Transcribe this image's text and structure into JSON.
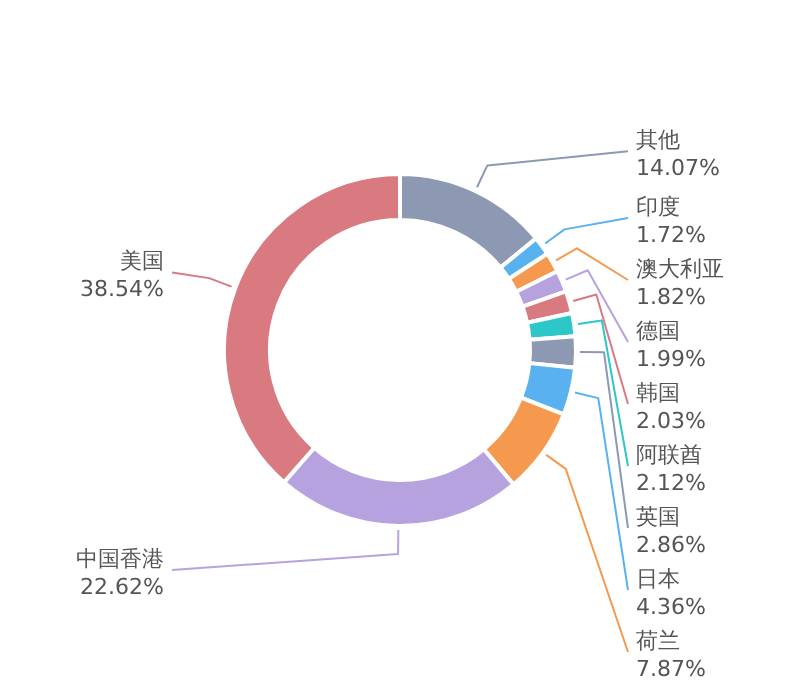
{
  "chart_data": {
    "type": "donut",
    "categories": [
      "其他",
      "印度",
      "澳大利亚",
      "德国",
      "韩国",
      "阿联酋",
      "英国",
      "日本",
      "荷兰",
      "中国香港",
      "美国"
    ],
    "values": [
      14.07,
      1.72,
      1.82,
      1.99,
      2.03,
      2.12,
      2.86,
      4.36,
      7.87,
      22.62,
      38.54
    ],
    "value_labels": [
      "14.07%",
      "1.72%",
      "1.82%",
      "1.99%",
      "2.03%",
      "2.12%",
      "2.86%",
      "4.36%",
      "7.87%",
      "22.62%",
      "38.54%"
    ],
    "colors": [
      "#8d98b3",
      "#5ab1ef",
      "#f5994e",
      "#b6a2de",
      "#d87a80",
      "#2ec7c9",
      "#8d98b3",
      "#5ab1ef",
      "#f5994e",
      "#b6a2de",
      "#d87a80"
    ]
  }
}
